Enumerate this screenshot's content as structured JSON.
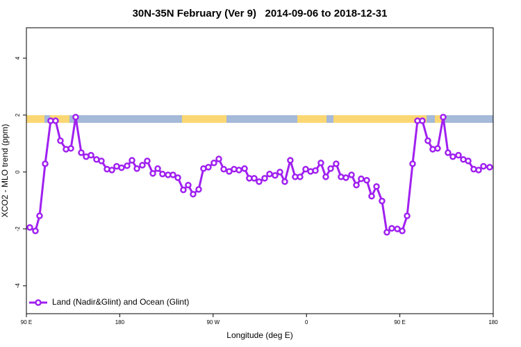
{
  "chart_data": {
    "type": "line",
    "title": "30N-35N February (Ver 9)   2014-09-06 to 2018-12-31",
    "xlabel": "Longitude (deg E)",
    "ylabel": "XCO2 - MLO trend (ppm)",
    "xlim": [
      90,
      540
    ],
    "ylim": [
      -4.98,
      5.07
    ],
    "xticks": [
      {
        "value": 90,
        "label": "90 E"
      },
      180,
      {
        "value": 270,
        "label": "90 W"
      },
      {
        "value": 360,
        "label": "0"
      },
      {
        "value": 450,
        "label": "90 E"
      },
      {
        "value": 540,
        "label": "180"
      }
    ],
    "yticks": [
      -4,
      -2,
      0,
      2,
      4
    ],
    "legend": "lower left",
    "x": [
      93.3,
      98.7,
      102.7,
      108.1,
      113.4,
      118.1,
      122.8,
      128.2,
      132.9,
      137.5,
      142.9,
      147.6,
      152.3,
      157.6,
      162.3,
      167.7,
      172.4,
      177.0,
      181.7,
      187.1,
      191.8,
      196.5,
      201.8,
      206.5,
      211.9,
      216.6,
      221.2,
      226.6,
      231.3,
      236.0,
      241.3,
      246.0,
      250.7,
      256.1,
      260.7,
      265.4,
      270.8,
      275.5,
      280.2,
      285.5,
      290.2,
      294.9,
      300.3,
      304.9,
      309.6,
      314.3,
      319.7,
      324.4,
      329.7,
      334.4,
      339.1,
      344.4,
      349.1,
      353.8,
      359.2,
      363.9,
      368.6,
      373.9,
      378.6,
      383.3,
      388.6,
      393.3,
      398.0,
      403.4,
      408.1,
      412.7,
      418.1,
      422.8,
      427.5,
      432.8,
      437.5,
      442.2,
      447.6,
      452.3,
      457.0,
      462.3,
      467.0,
      471.7,
      477.0,
      481.7,
      486.4,
      491.8,
      496.4,
      501.1,
      506.5,
      511.2,
      515.9,
      521.2,
      525.9,
      530.6,
      536.6
    ],
    "series": [
      {
        "name": "Land (Nadir&Glint) and Ocean (Glint)",
        "color": "#a020f0",
        "values": [
          -1.95,
          -2.07,
          -1.54,
          0.29,
          1.8,
          1.8,
          1.1,
          0.8,
          0.83,
          1.93,
          0.68,
          0.54,
          0.59,
          0.44,
          0.39,
          0.1,
          0.07,
          0.2,
          0.15,
          0.22,
          0.41,
          0.12,
          0.24,
          0.39,
          -0.05,
          0.12,
          -0.07,
          -0.1,
          -0.1,
          -0.2,
          -0.63,
          -0.46,
          -0.78,
          -0.61,
          0.12,
          0.17,
          0.32,
          0.46,
          0.1,
          0.02,
          0.1,
          0.07,
          0.12,
          -0.22,
          -0.22,
          -0.34,
          -0.22,
          -0.07,
          -0.12,
          0,
          -0.34,
          0.41,
          -0.17,
          -0.17,
          0.1,
          0.02,
          0.05,
          0.32,
          -0.17,
          0.12,
          0.29,
          -0.17,
          -0.2,
          -0.1,
          -0.46,
          -0.24,
          -0.29,
          -0.85,
          -0.51,
          -1.02,
          -2.12,
          -1.98,
          -2.0,
          -2.07,
          -1.54,
          0.29,
          1.8,
          1.8,
          1.1,
          0.8,
          0.83,
          1.93,
          0.68,
          0.54,
          0.59,
          0.44,
          0.39,
          0.1,
          0.07,
          0.2,
          0.17
        ]
      }
    ]
  }
}
